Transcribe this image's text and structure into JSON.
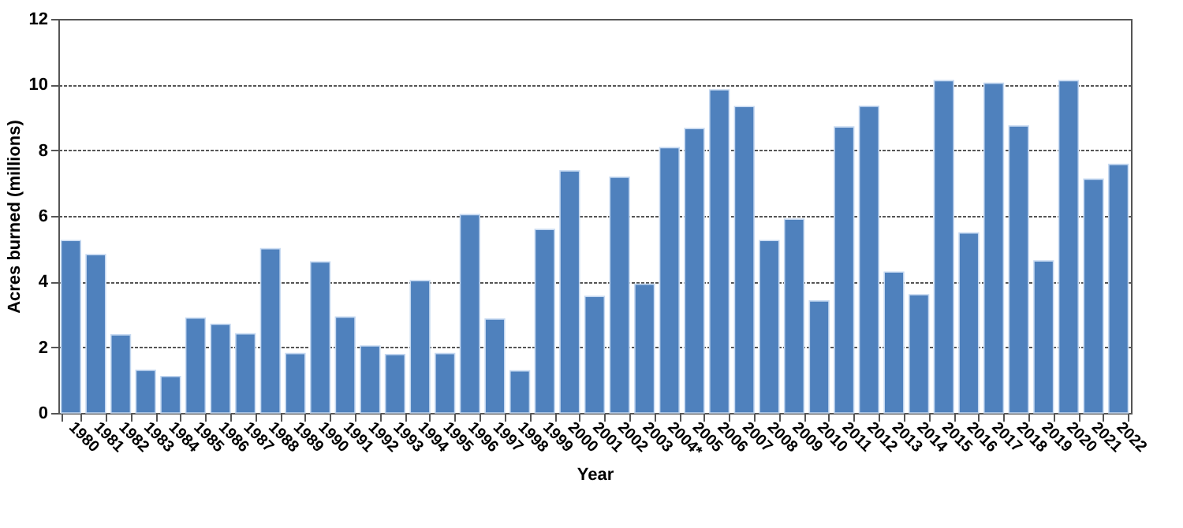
{
  "chart_data": {
    "type": "bar",
    "xlabel": "Year",
    "ylabel": "Acres burned (millions)",
    "categories": [
      "1980",
      "1981",
      "1982",
      "1983",
      "1984",
      "1985",
      "1986",
      "1987",
      "1988",
      "1989",
      "1990",
      "1991",
      "1992",
      "1993",
      "1994",
      "1995",
      "1996",
      "1997",
      "1998",
      "1999",
      "2000",
      "2001",
      "2002",
      "2003",
      "2004*",
      "2005",
      "2006",
      "2007",
      "2008",
      "2009",
      "2010",
      "2011",
      "2012",
      "2013",
      "2014",
      "2015",
      "2016",
      "2017",
      "2018",
      "2019",
      "2020",
      "2021",
      "2022"
    ],
    "values": [
      5.25,
      4.82,
      2.38,
      1.3,
      1.11,
      2.89,
      2.7,
      2.41,
      5.0,
      1.81,
      4.6,
      2.92,
      2.04,
      1.78,
      4.03,
      1.81,
      6.04,
      2.86,
      1.28,
      5.59,
      7.37,
      3.55,
      7.18,
      3.92,
      8.08,
      8.66,
      9.84,
      9.33,
      5.25,
      5.9,
      3.41,
      8.71,
      9.34,
      4.29,
      3.6,
      10.12,
      5.48,
      10.04,
      8.74,
      4.63,
      10.12,
      7.12,
      7.57
    ],
    "color": "#4f81bd",
    "ylim": [
      0,
      12
    ],
    "yticks": [
      0,
      2,
      4,
      6,
      8,
      10,
      12
    ],
    "grid": "y"
  }
}
